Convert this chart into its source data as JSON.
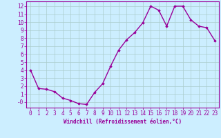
{
  "x": [
    0,
    1,
    2,
    3,
    4,
    5,
    6,
    7,
    8,
    9,
    10,
    11,
    12,
    13,
    14,
    15,
    16,
    17,
    18,
    19,
    20,
    21,
    22,
    23
  ],
  "y": [
    4,
    1.7,
    1.6,
    1.3,
    0.5,
    0.2,
    -0.2,
    -0.3,
    1.2,
    2.3,
    4.5,
    6.5,
    7.8,
    8.7,
    9.9,
    12.0,
    11.5,
    9.5,
    12.0,
    12.0,
    10.3,
    9.5,
    9.3,
    7.7
  ],
  "line_color": "#990099",
  "marker": "D",
  "marker_size": 1.8,
  "bg_color": "#cceeff",
  "grid_color": "#aacccc",
  "xlabel": "Windchill (Refroidissement éolien,°C)",
  "xlabel_color": "#990099",
  "xlabel_fontsize": 5.5,
  "yticks": [
    0,
    1,
    2,
    3,
    4,
    5,
    6,
    7,
    8,
    9,
    10,
    11,
    12
  ],
  "ytick_labels": [
    "-0",
    "1",
    "2",
    "3",
    "4",
    "5",
    "6",
    "7",
    "8",
    "9",
    "10",
    "11",
    "12"
  ],
  "xlim": [
    -0.5,
    23.5
  ],
  "ylim": [
    -0.7,
    12.6
  ],
  "tick_color": "#990099",
  "tick_fontsize": 5.5,
  "linewidth": 1.0,
  "spine_color": "#990099"
}
